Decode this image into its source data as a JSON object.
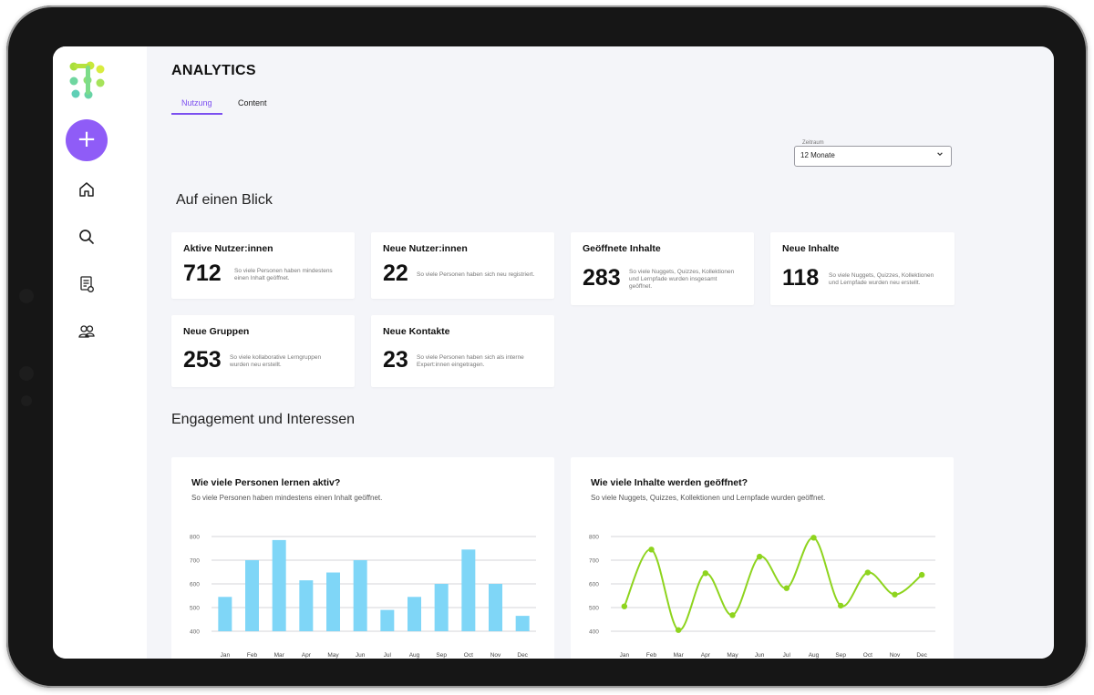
{
  "header": {
    "title": "ANALYTICS"
  },
  "tabs": [
    {
      "label": "Nutzung",
      "active": true
    },
    {
      "label": "Content",
      "active": false
    }
  ],
  "filter": {
    "label": "Zeitraum",
    "value": "12 Monate"
  },
  "sidebar": {
    "add_label": "+",
    "items": [
      {
        "icon": "home-icon"
      },
      {
        "icon": "search-icon"
      },
      {
        "icon": "document-settings-icon"
      },
      {
        "icon": "users-icon"
      }
    ]
  },
  "glance": {
    "title": "Auf einen Blick",
    "cards": [
      {
        "title": "Aktive Nutzer:innen",
        "value": "712",
        "desc": "So viele Personen haben mindestens einen Inhalt geöffnet."
      },
      {
        "title": "Neue Nutzer:innen",
        "value": "22",
        "desc": "So viele Personen haben sich neu registriert."
      },
      {
        "title": "Geöffnete Inhalte",
        "value": "283",
        "desc": "So viele Nuggets, Quizzes, Kollektionen und Lernpfade wurden insgesamt geöffnet."
      },
      {
        "title": "Neue Inhalte",
        "value": "118",
        "desc": "So viele Nuggets, Quizzes, Kollektionen und Lernpfade wurden neu erstellt."
      },
      {
        "title": "Neue Gruppen",
        "value": "253",
        "desc": "So viele kollaborative Lerngruppen wurden neu erstellt."
      },
      {
        "title": "Neue Kontakte",
        "value": "23",
        "desc": "So viele Personen haben sich als interne Expert:innen eingetragen."
      }
    ]
  },
  "engagement": {
    "title": "Engagement und Interessen"
  },
  "chart_data": [
    {
      "type": "bar",
      "title": "Wie viele Personen lernen aktiv?",
      "subtitle": "So viele Personen haben mindestens einen Inhalt geöffnet.",
      "categories": [
        "Jan",
        "Feb",
        "Mar",
        "Apr",
        "May",
        "Jun",
        "Jul",
        "Aug",
        "Sep",
        "Oct",
        "Nov",
        "Dec"
      ],
      "values": [
        545,
        700,
        785,
        615,
        648,
        700,
        490,
        545,
        600,
        745,
        600,
        465
      ],
      "yticks": [
        800,
        700,
        600,
        500,
        400
      ],
      "ylim": [
        400,
        800
      ],
      "color": "#7fd6f7"
    },
    {
      "type": "line",
      "title": "Wie viele Inhalte werden geöffnet?",
      "subtitle": "So viele Nuggets, Quizzes, Kollektionen und Lernpfade wurden geöffnet.",
      "categories": [
        "Jan",
        "Feb",
        "Mar",
        "Apr",
        "May",
        "Jun",
        "Jul",
        "Aug",
        "Sep",
        "Oct",
        "Nov",
        "Dec"
      ],
      "values": [
        505,
        745,
        405,
        645,
        468,
        715,
        582,
        795,
        508,
        648,
        555,
        638
      ],
      "yticks": [
        800,
        700,
        600,
        500,
        400
      ],
      "ylim": [
        400,
        800
      ],
      "color": "#8ed41e"
    }
  ]
}
